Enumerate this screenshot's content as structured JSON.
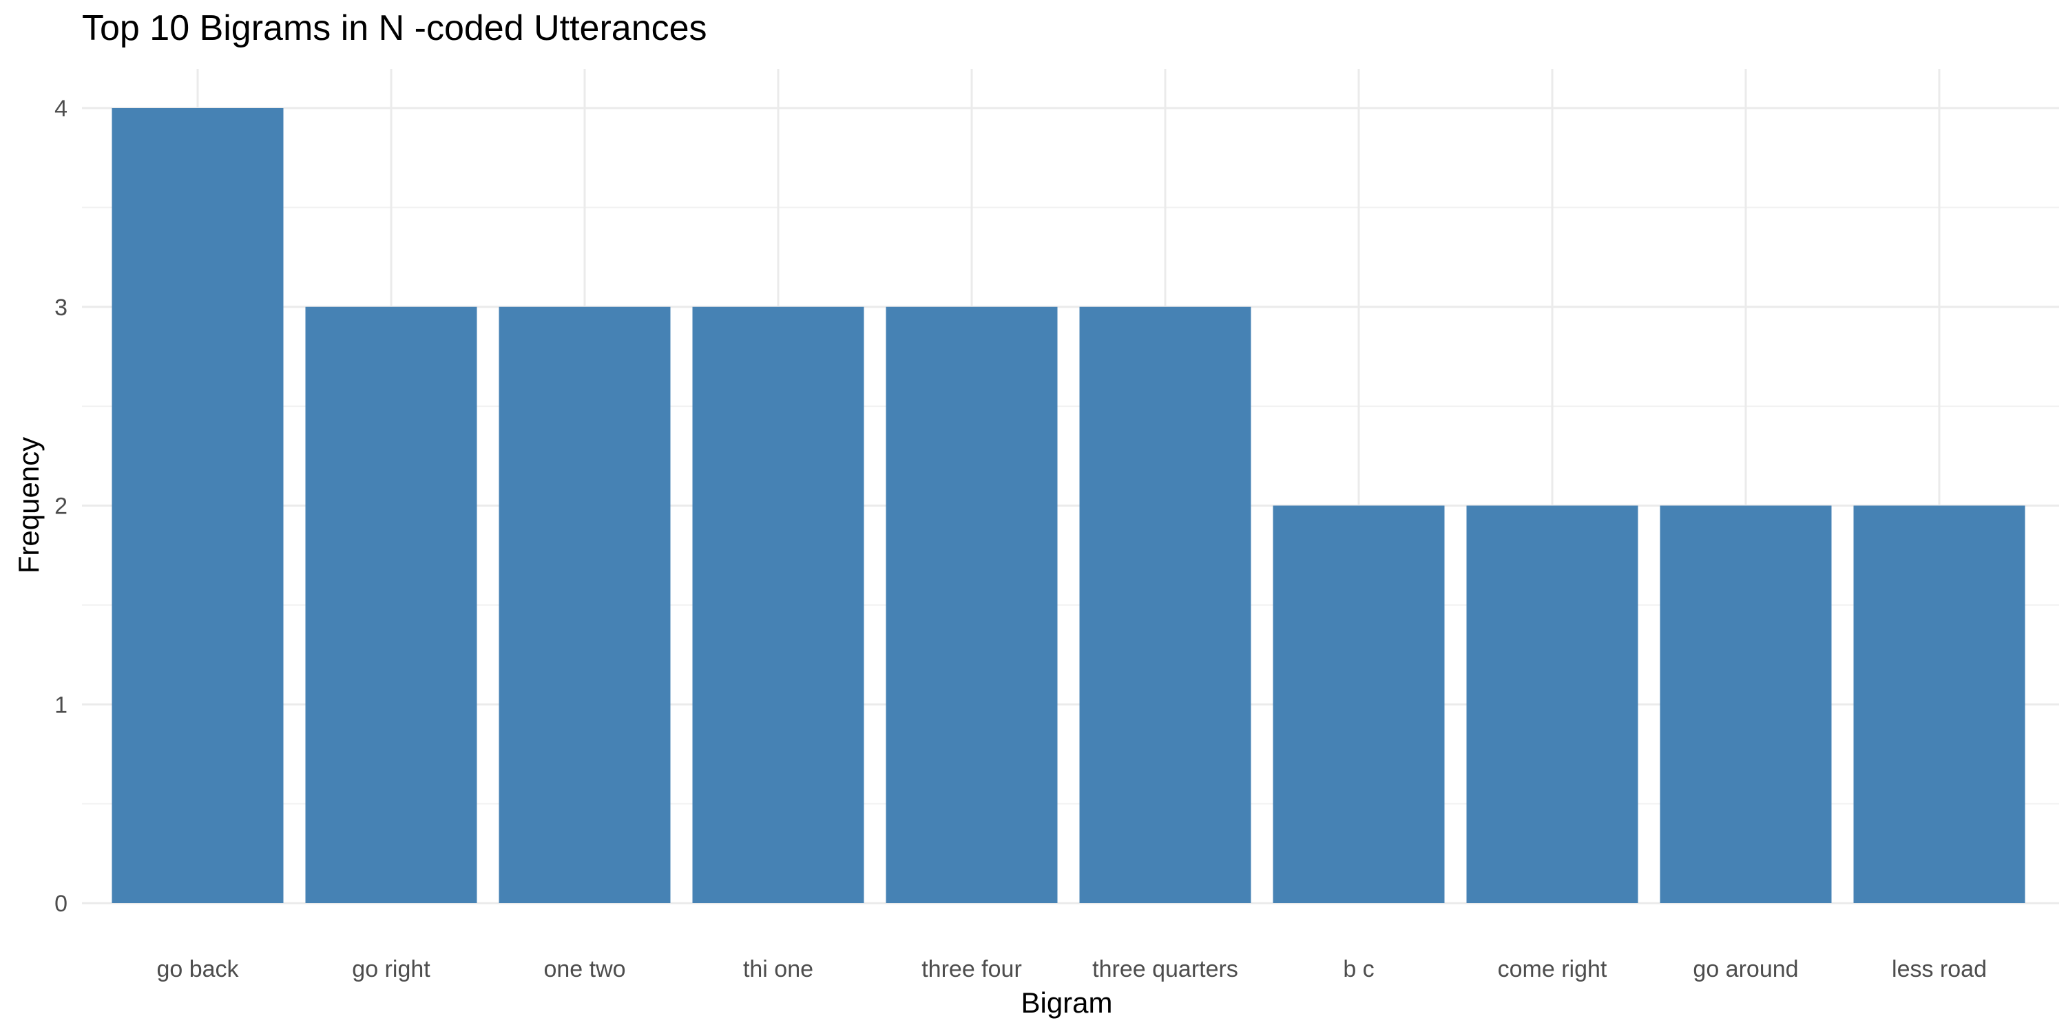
{
  "chart_data": {
    "type": "bar",
    "title": "Top 10 Bigrams in N -coded Utterances",
    "xlabel": "Bigram",
    "ylabel": "Frequency",
    "categories": [
      "go back",
      "go right",
      "one two",
      "thi one",
      "three four",
      "three quarters",
      "b c",
      "come right",
      "go around",
      "less road"
    ],
    "values": [
      4,
      3,
      3,
      3,
      3,
      3,
      2,
      2,
      2,
      2
    ],
    "ylim": [
      0,
      4
    ],
    "yticks": [
      0,
      1,
      2,
      3,
      4
    ],
    "grid": true,
    "legend": "none",
    "colors": {
      "bar": "#4682B4",
      "grid_major": "#EBEBEB",
      "grid_minor": "#F2F2F2",
      "tick_text": "#4D4D4D",
      "title_text": "#000000"
    }
  }
}
